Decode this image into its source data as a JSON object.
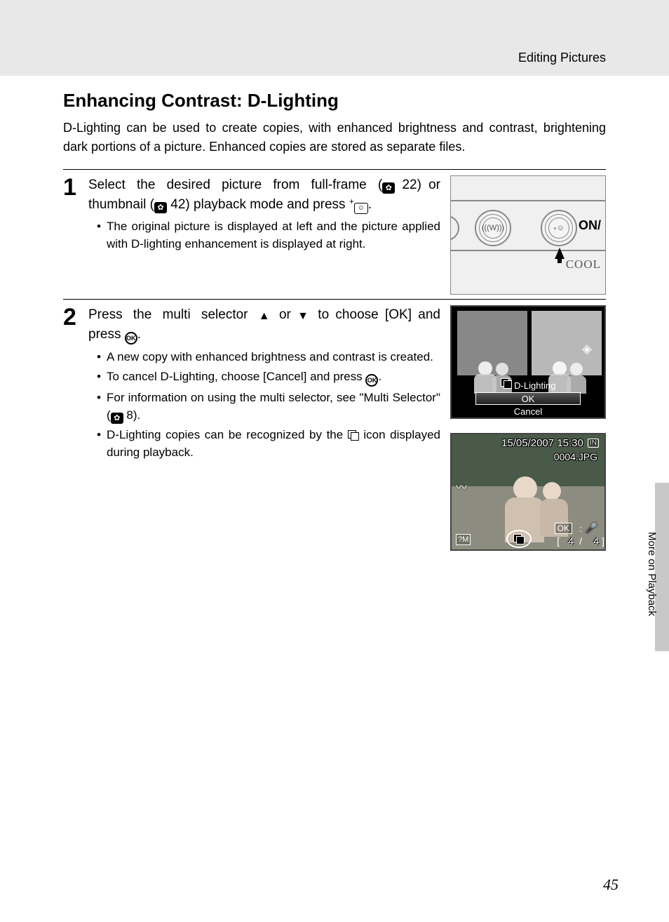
{
  "breadcrumb": "Editing Pictures",
  "title": "Enhancing Contrast: D-Lighting",
  "intro": "D-Lighting can be used to create copies, with enhanced brightness and contrast, brightening dark portions of a picture. Enhanced copies are stored as separate files.",
  "step1": {
    "num": "1",
    "heading_pre": "Select the desired picture from full-frame (",
    "ref1": "22",
    "heading_mid": ") or thumbnail (",
    "ref2": "42",
    "heading_post1": ") playback mode and press ",
    "heading_post2": ".",
    "bullet1": "The original picture is displayed at left and the picture applied with D-lighting enhancement is displayed at right."
  },
  "camera": {
    "on_label": "ON/",
    "cool_label": "COOL",
    "shake_glyph": "(((W)))",
    "dlight_glyph": "☺"
  },
  "step2": {
    "num": "2",
    "heading_a": "Press the multi selector ",
    "heading_b": " or ",
    "heading_c": " to choose [OK] and press ",
    "heading_d": ".",
    "bullet1": "A new copy with enhanced brightness and contrast is created.",
    "bullet2a": "To cancel D-Lighting, choose [Cancel] and press ",
    "bullet2b": ".",
    "bullet3a": "For information on using the multi selector, see \"Multi Selector\" (",
    "ref3": "8",
    "bullet3b": ").",
    "bullet4a": "D-Lighting copies can be recognized by the ",
    "bullet4b": " icon displayed during playback."
  },
  "lcd": {
    "label": "D-Lighting",
    "ok": "OK",
    "cancel": "Cancel"
  },
  "playback": {
    "timestamp": "15/05/2007 15:30",
    "in_badge": "IN",
    "filename": "0004.JPG",
    "size_mode": "?M",
    "dl_glyph": "⎙",
    "ok": "OK",
    "counter_current": "4",
    "counter_total": "4",
    "bracket_l": "[",
    "bracket_r": "]",
    "slash": "/"
  },
  "side_tab": "More on Playback",
  "page_number": "45",
  "ok_glyph": "OK",
  "camera_ref_glyph": "✿",
  "tri_up": "▲",
  "tri_down": "▼",
  "sup_plus": "+",
  "face_glyph": "☺"
}
